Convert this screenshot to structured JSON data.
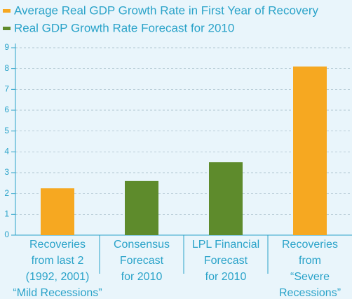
{
  "chart_data": {
    "type": "bar",
    "categories": [
      [
        "Recoveries",
        "from last 2",
        "(1992, 2001)",
        "“Mild Recessions”"
      ],
      [
        "Consensus",
        "Forecast",
        "for 2010"
      ],
      [
        "LPL Financial",
        "Forecast",
        "for 2010"
      ],
      [
        "Recoveries",
        "from",
        "“Severe",
        "Recessions”"
      ]
    ],
    "series": [
      {
        "name": "Average Real GDP Growth Rate in First Year of Recovery",
        "color": "#f6a821",
        "values": [
          2.25,
          null,
          null,
          8.1
        ]
      },
      {
        "name": "Real GDP Growth Rate Forecast for 2010",
        "color": "#5e8b2c",
        "values": [
          null,
          2.6,
          3.5,
          null
        ]
      }
    ],
    "ylim": [
      0,
      9
    ],
    "yticks": [
      0,
      1,
      2,
      3,
      4,
      5,
      6,
      7,
      8,
      9
    ],
    "grid": true
  }
}
